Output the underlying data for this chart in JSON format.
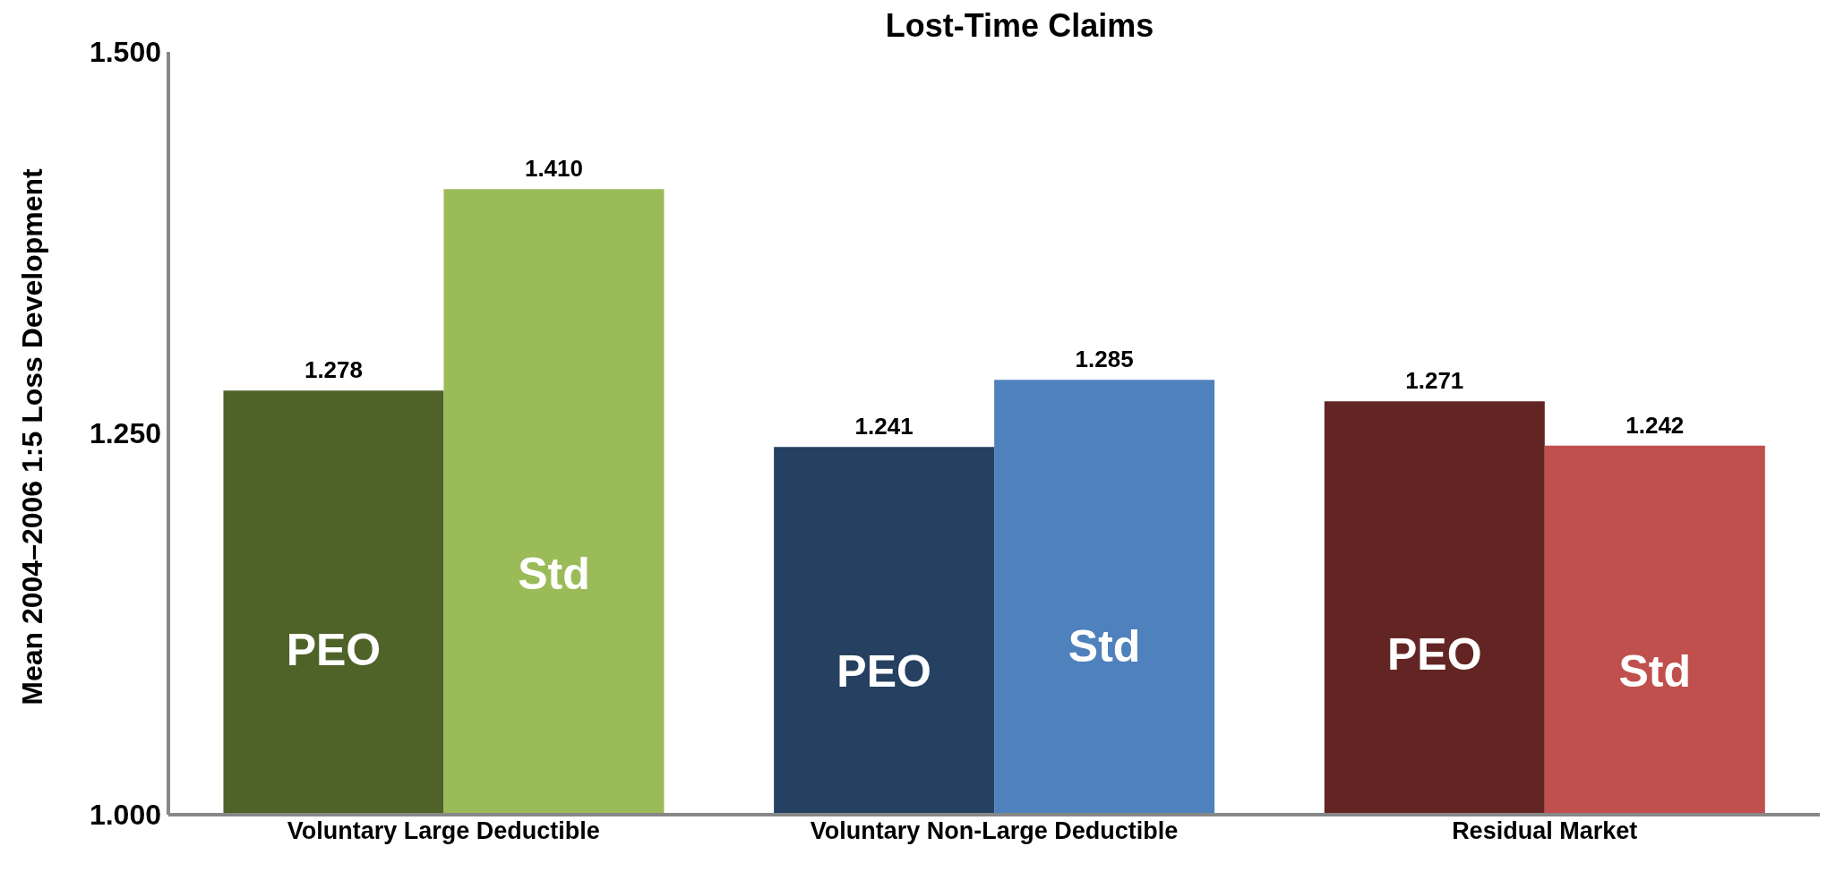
{
  "chart_data": {
    "type": "bar",
    "title": "Lost-Time Claims",
    "ylabel": "Mean 2004–2006 1:5 Loss Development",
    "categories": [
      "Voluntary Large Deductible",
      "Voluntary Non-Large Deductible",
      "Residual Market"
    ],
    "series": [
      {
        "name": "PEO",
        "colors": [
          "#4f6228",
          "#254061",
          "#632523"
        ],
        "values": [
          1.278,
          1.241,
          1.271
        ],
        "value_labels": [
          "1.278",
          "1.241",
          "1.271"
        ]
      },
      {
        "name": "Std",
        "colors": [
          "#9bbb59",
          "#4f81bd",
          "#c0504d"
        ],
        "values": [
          1.41,
          1.285,
          1.242
        ],
        "value_labels": [
          "1.410",
          "1.285",
          "1.242"
        ]
      }
    ],
    "ylim": [
      1,
      1.5
    ],
    "yticks": [
      {
        "value": 1,
        "label": "1.000"
      },
      {
        "value": 1.25,
        "label": "1.250"
      },
      {
        "value": 1.5,
        "label": "1.500"
      }
    ],
    "grid": false,
    "legend": false
  }
}
